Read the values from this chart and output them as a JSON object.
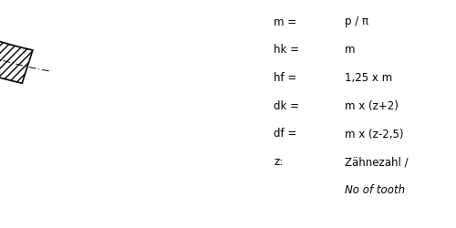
{
  "formulas": [
    [
      "m =",
      "p / π"
    ],
    [
      "hk =",
      "m"
    ],
    [
      "hf =",
      "1,25 x m"
    ],
    [
      "dk =",
      "m x (z+2)"
    ],
    [
      "df =",
      "m x (z-2,5)"
    ],
    [
      "z:",
      "Zähnezahl /"
    ],
    [
      "",
      "No of tooth"
    ]
  ],
  "bg_color": "#ffffff",
  "text_color": "#000000"
}
